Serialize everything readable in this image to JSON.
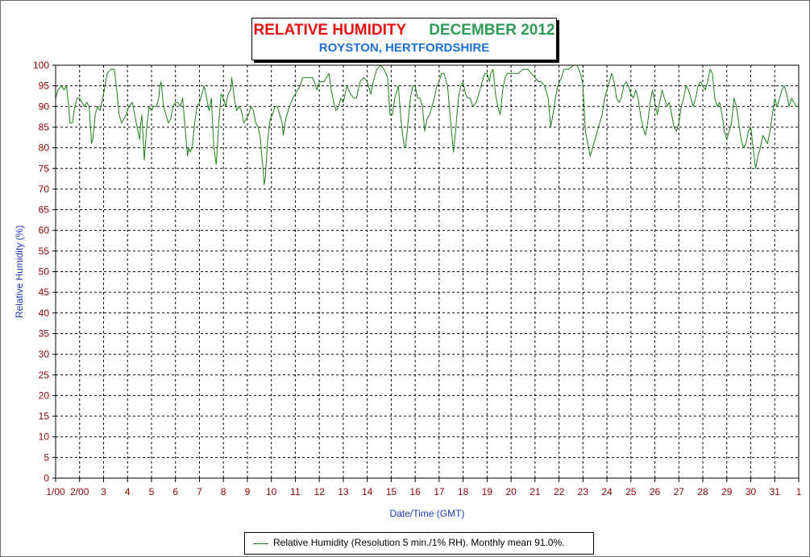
{
  "chart_data": {
    "type": "line",
    "title": "RELATIVE HUMIDITY",
    "subtitle": "DECEMBER 2012",
    "location": "ROYSTON, HERTFORDSHIRE",
    "xlabel": "Date/Time (GMT)",
    "ylabel": "Relative Humidity (%)",
    "ylim": [
      0,
      100
    ],
    "xlim": [
      1,
      32
    ],
    "grid": true,
    "legend_position": "bottom-center",
    "x_tick_labels": [
      "1/00",
      "2/00",
      "3",
      "4",
      "5",
      "6",
      "7",
      "8",
      "9",
      "10",
      "11",
      "12",
      "13",
      "14",
      "15",
      "16",
      "17",
      "18",
      "19",
      "20",
      "21",
      "22",
      "23",
      "24",
      "25",
      "26",
      "27",
      "28",
      "29",
      "30",
      "31",
      "1"
    ],
    "y_ticks": [
      0,
      5,
      10,
      15,
      20,
      25,
      30,
      35,
      40,
      45,
      50,
      55,
      60,
      65,
      70,
      75,
      80,
      85,
      90,
      95,
      100
    ],
    "series": [
      {
        "name": "Relative Humidity (Resolution 5 min./1% RH). Monthly mean 91.0%.",
        "color": "#1a7f1a",
        "points": [
          [
            1.0,
            92
          ],
          [
            1.1,
            94
          ],
          [
            1.25,
            95
          ],
          [
            1.35,
            94
          ],
          [
            1.45,
            95
          ],
          [
            1.55,
            90
          ],
          [
            1.6,
            86
          ],
          [
            1.7,
            86
          ],
          [
            1.8,
            90
          ],
          [
            1.9,
            92
          ],
          [
            2.0,
            92
          ],
          [
            2.1,
            91
          ],
          [
            2.2,
            90
          ],
          [
            2.3,
            91
          ],
          [
            2.4,
            90
          ],
          [
            2.5,
            81
          ],
          [
            2.55,
            82
          ],
          [
            2.65,
            88
          ],
          [
            2.75,
            90
          ],
          [
            2.85,
            89
          ],
          [
            3.0,
            93
          ],
          [
            3.15,
            98
          ],
          [
            3.3,
            99
          ],
          [
            3.45,
            99
          ],
          [
            3.55,
            94
          ],
          [
            3.65,
            88
          ],
          [
            3.75,
            86
          ],
          [
            3.85,
            87
          ],
          [
            3.95,
            88
          ],
          [
            4.05,
            90
          ],
          [
            4.2,
            91
          ],
          [
            4.3,
            88
          ],
          [
            4.4,
            85
          ],
          [
            4.5,
            82
          ],
          [
            4.55,
            86
          ],
          [
            4.6,
            88
          ],
          [
            4.7,
            77
          ],
          [
            4.8,
            85
          ],
          [
            4.9,
            90
          ],
          [
            5.0,
            89
          ],
          [
            5.1,
            90
          ],
          [
            5.2,
            90
          ],
          [
            5.3,
            92
          ],
          [
            5.35,
            95
          ],
          [
            5.4,
            96
          ],
          [
            5.5,
            90
          ],
          [
            5.6,
            88
          ],
          [
            5.7,
            86
          ],
          [
            5.8,
            87
          ],
          [
            5.9,
            90
          ],
          [
            6.0,
            91
          ],
          [
            6.1,
            91
          ],
          [
            6.2,
            90
          ],
          [
            6.3,
            92
          ],
          [
            6.4,
            85
          ],
          [
            6.5,
            78
          ],
          [
            6.55,
            80
          ],
          [
            6.6,
            79
          ],
          [
            6.7,
            80
          ],
          [
            6.8,
            86
          ],
          [
            6.9,
            90
          ],
          [
            7.0,
            91
          ],
          [
            7.1,
            93
          ],
          [
            7.2,
            95
          ],
          [
            7.3,
            92
          ],
          [
            7.4,
            89
          ],
          [
            7.5,
            92
          ],
          [
            7.6,
            80
          ],
          [
            7.7,
            76
          ],
          [
            7.8,
            85
          ],
          [
            7.9,
            93
          ],
          [
            8.0,
            92
          ],
          [
            8.1,
            90
          ],
          [
            8.2,
            93
          ],
          [
            8.3,
            94
          ],
          [
            8.35,
            97
          ],
          [
            8.45,
            92
          ],
          [
            8.55,
            89
          ],
          [
            8.65,
            90
          ],
          [
            8.75,
            89
          ],
          [
            8.85,
            86
          ],
          [
            8.95,
            87
          ],
          [
            9.05,
            88
          ],
          [
            9.15,
            90
          ],
          [
            9.25,
            89
          ],
          [
            9.35,
            86
          ],
          [
            9.45,
            85
          ],
          [
            9.55,
            82
          ],
          [
            9.6,
            78
          ],
          [
            9.65,
            75
          ],
          [
            9.7,
            71
          ],
          [
            9.75,
            73
          ],
          [
            9.85,
            82
          ],
          [
            9.95,
            87
          ],
          [
            10.05,
            88
          ],
          [
            10.15,
            90
          ],
          [
            10.25,
            90
          ],
          [
            10.35,
            88
          ],
          [
            10.45,
            86
          ],
          [
            10.5,
            83
          ],
          [
            10.6,
            87
          ],
          [
            10.75,
            90
          ],
          [
            10.9,
            92
          ],
          [
            11.0,
            93
          ],
          [
            11.1,
            94
          ],
          [
            11.2,
            95
          ],
          [
            11.3,
            97
          ],
          [
            11.5,
            97
          ],
          [
            11.7,
            97
          ],
          [
            11.8,
            96
          ],
          [
            11.9,
            94
          ],
          [
            12.0,
            96
          ],
          [
            12.2,
            96
          ],
          [
            12.4,
            98
          ],
          [
            12.5,
            94
          ],
          [
            12.6,
            91
          ],
          [
            12.7,
            89
          ],
          [
            12.8,
            90
          ],
          [
            12.9,
            92
          ],
          [
            13.0,
            91
          ],
          [
            13.15,
            95
          ],
          [
            13.3,
            93
          ],
          [
            13.45,
            92
          ],
          [
            13.55,
            92
          ],
          [
            13.7,
            96
          ],
          [
            13.85,
            97
          ],
          [
            14.0,
            96
          ],
          [
            14.15,
            93
          ],
          [
            14.25,
            96
          ],
          [
            14.4,
            99
          ],
          [
            14.55,
            100
          ],
          [
            14.7,
            99
          ],
          [
            14.85,
            97
          ],
          [
            14.95,
            88
          ],
          [
            15.05,
            88
          ],
          [
            15.15,
            92
          ],
          [
            15.3,
            95
          ],
          [
            15.4,
            87
          ],
          [
            15.5,
            82
          ],
          [
            15.55,
            80
          ],
          [
            15.6,
            80
          ],
          [
            15.7,
            86
          ],
          [
            15.8,
            92
          ],
          [
            15.9,
            95
          ],
          [
            16.0,
            95
          ],
          [
            16.1,
            92
          ],
          [
            16.2,
            92
          ],
          [
            16.3,
            90
          ],
          [
            16.4,
            84
          ],
          [
            16.5,
            87
          ],
          [
            16.6,
            88
          ],
          [
            16.7,
            90
          ],
          [
            16.8,
            92
          ],
          [
            16.9,
            95
          ],
          [
            17.0,
            96
          ],
          [
            17.1,
            98
          ],
          [
            17.2,
            98
          ],
          [
            17.35,
            95
          ],
          [
            17.45,
            88
          ],
          [
            17.55,
            82
          ],
          [
            17.6,
            79
          ],
          [
            17.7,
            85
          ],
          [
            17.8,
            92
          ],
          [
            17.9,
            95
          ],
          [
            18.0,
            96
          ],
          [
            18.1,
            93
          ],
          [
            18.2,
            92
          ],
          [
            18.3,
            92
          ],
          [
            18.4,
            90
          ],
          [
            18.55,
            91
          ],
          [
            18.7,
            94
          ],
          [
            18.8,
            96
          ],
          [
            18.9,
            98
          ],
          [
            19.0,
            98
          ],
          [
            19.1,
            96
          ],
          [
            19.15,
            98
          ],
          [
            19.25,
            99
          ],
          [
            19.35,
            93
          ],
          [
            19.45,
            90
          ],
          [
            19.55,
            88
          ],
          [
            19.65,
            94
          ],
          [
            19.75,
            97
          ],
          [
            19.85,
            98
          ],
          [
            20.0,
            98
          ],
          [
            20.3,
            98
          ],
          [
            20.5,
            99
          ],
          [
            20.7,
            99
          ],
          [
            20.85,
            98
          ],
          [
            21.0,
            97
          ],
          [
            21.15,
            96
          ],
          [
            21.25,
            96
          ],
          [
            21.4,
            95
          ],
          [
            21.55,
            92
          ],
          [
            21.65,
            85
          ],
          [
            21.75,
            88
          ],
          [
            21.85,
            92
          ],
          [
            21.95,
            95
          ],
          [
            22.1,
            97
          ],
          [
            22.2,
            99
          ],
          [
            22.4,
            99
          ],
          [
            22.6,
            100
          ],
          [
            22.75,
            100
          ],
          [
            22.9,
            98
          ],
          [
            23.0,
            95
          ],
          [
            23.1,
            84
          ],
          [
            23.2,
            81
          ],
          [
            23.3,
            78
          ],
          [
            23.4,
            80
          ],
          [
            23.5,
            82
          ],
          [
            23.6,
            84
          ],
          [
            23.7,
            86
          ],
          [
            23.8,
            88
          ],
          [
            23.9,
            92
          ],
          [
            24.0,
            94
          ],
          [
            24.1,
            96
          ],
          [
            24.2,
            98
          ],
          [
            24.3,
            96
          ],
          [
            24.4,
            92
          ],
          [
            24.5,
            91
          ],
          [
            24.6,
            92
          ],
          [
            24.7,
            95
          ],
          [
            24.8,
            96
          ],
          [
            24.9,
            95
          ],
          [
            25.0,
            93
          ],
          [
            25.1,
            92
          ],
          [
            25.2,
            94
          ],
          [
            25.3,
            92
          ],
          [
            25.4,
            88
          ],
          [
            25.5,
            85
          ],
          [
            25.6,
            83
          ],
          [
            25.7,
            86
          ],
          [
            25.8,
            91
          ],
          [
            25.9,
            94
          ],
          [
            26.0,
            91
          ],
          [
            26.1,
            88
          ],
          [
            26.2,
            91
          ],
          [
            26.3,
            94
          ],
          [
            26.4,
            92
          ],
          [
            26.5,
            90
          ],
          [
            26.6,
            91
          ],
          [
            26.7,
            88
          ],
          [
            26.8,
            85
          ],
          [
            26.9,
            84
          ],
          [
            27.0,
            86
          ],
          [
            27.1,
            90
          ],
          [
            27.2,
            92
          ],
          [
            27.3,
            95
          ],
          [
            27.4,
            94
          ],
          [
            27.5,
            92
          ],
          [
            27.6,
            90
          ],
          [
            27.7,
            92
          ],
          [
            27.8,
            95
          ],
          [
            27.9,
            96
          ],
          [
            28.0,
            95
          ],
          [
            28.1,
            94
          ],
          [
            28.2,
            96
          ],
          [
            28.3,
            99
          ],
          [
            28.4,
            98
          ],
          [
            28.5,
            92
          ],
          [
            28.6,
            90
          ],
          [
            28.7,
            91
          ],
          [
            28.8,
            88
          ],
          [
            28.9,
            84
          ],
          [
            29.0,
            82
          ],
          [
            29.1,
            84
          ],
          [
            29.2,
            86
          ],
          [
            29.3,
            92
          ],
          [
            29.4,
            90
          ],
          [
            29.5,
            86
          ],
          [
            29.6,
            82
          ],
          [
            29.7,
            80
          ],
          [
            29.8,
            81
          ],
          [
            29.9,
            84
          ],
          [
            30.0,
            85
          ],
          [
            30.1,
            80
          ],
          [
            30.2,
            75
          ],
          [
            30.3,
            78
          ],
          [
            30.4,
            80
          ],
          [
            30.5,
            83
          ],
          [
            30.6,
            82
          ],
          [
            30.7,
            81
          ],
          [
            30.8,
            84
          ],
          [
            30.9,
            88
          ],
          [
            31.0,
            92
          ],
          [
            31.1,
            90
          ],
          [
            31.2,
            92
          ],
          [
            31.3,
            94
          ],
          [
            31.4,
            95
          ],
          [
            31.5,
            93
          ],
          [
            31.6,
            90
          ],
          [
            31.7,
            92
          ],
          [
            31.8,
            91
          ],
          [
            31.9,
            90
          ],
          [
            32.0,
            90
          ]
        ]
      }
    ]
  }
}
